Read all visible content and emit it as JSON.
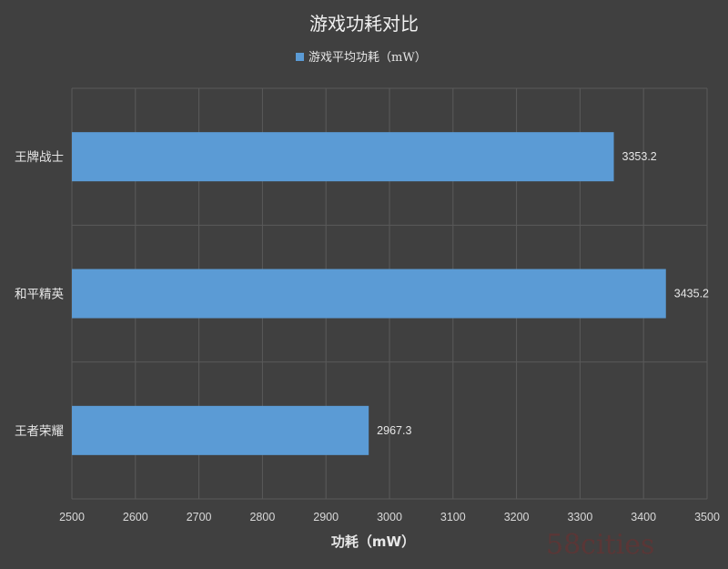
{
  "chart_data": {
    "type": "bar",
    "orientation": "horizontal",
    "title": "游戏功耗对比",
    "xlabel": "功耗（mW）",
    "ylabel": "",
    "categories": [
      "王牌战士",
      "和平精英",
      "王者荣耀"
    ],
    "series": [
      {
        "name": "游戏平均功耗（mW）",
        "values": [
          3353.2,
          3435.2,
          2967.3
        ],
        "color": "#5b9bd5"
      }
    ],
    "xlim": [
      2500,
      3500
    ],
    "xticks": [
      2500,
      2600,
      2700,
      2800,
      2900,
      3000,
      3100,
      3200,
      3300,
      3400,
      3500
    ],
    "data_labels": [
      "3353.2",
      "3435.2",
      "2967.3"
    ],
    "grid": true,
    "legend": "top-center",
    "background_color": "#404040",
    "gridline_color": "#5a5a5a"
  },
  "watermark": "58cities"
}
